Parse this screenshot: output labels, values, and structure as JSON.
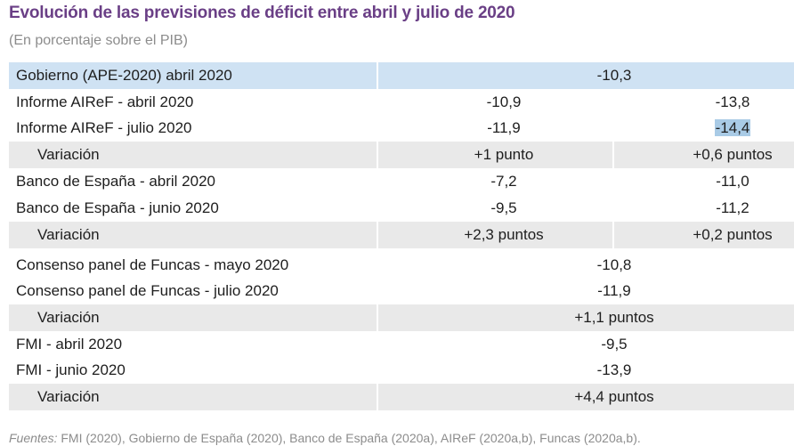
{
  "title": "Evolución de las previsiones de déficit entre abril y julio de 2020",
  "subtitle": "(En porcentaje sobre el PIB)",
  "rows": [
    {
      "label": "Gobierno (APE-2020) abril 2020",
      "center": "-10,3"
    },
    {
      "label": "Informe AIReF - abril 2020",
      "v1": "-10,9",
      "v2": "-13,8"
    },
    {
      "label": "Informe AIReF - julio 2020",
      "v1": "-11,9",
      "v2": "-14,4"
    },
    {
      "label": "Variación",
      "v1": "+1 punto",
      "v2": "+0,6 puntos"
    },
    {
      "label": "Banco de España - abril 2020",
      "v1": "-7,2",
      "v2": "-11,0"
    },
    {
      "label": "Banco de España - junio 2020",
      "v1": "-9,5",
      "v2": "-11,2"
    },
    {
      "label": "Variación",
      "v1": "+2,3 puntos",
      "v2": "+0,2 puntos"
    },
    {
      "label": "Consenso panel de Funcas - mayo 2020",
      "center": "-10,8"
    },
    {
      "label": "Consenso panel de Funcas - julio 2020",
      "center": "-11,9"
    },
    {
      "label": "Variación",
      "center": "+1,1 puntos"
    },
    {
      "label": "FMI - abril 2020",
      "center": "-9,5"
    },
    {
      "label": "FMI - junio 2020",
      "center": "-13,9"
    },
    {
      "label": "Variación",
      "center": "+4,4 puntos"
    }
  ],
  "footer": {
    "label": "Fuentes:",
    "text": " FMI (2020), Gobierno de España (2020), Banco de España (2020a), AIReF (2020a,b), Funcas (2020a,b)."
  },
  "colors": {
    "title": "#6a3f86",
    "header_highlight": "#cfe2f3",
    "shade": "#e9e9e9"
  }
}
